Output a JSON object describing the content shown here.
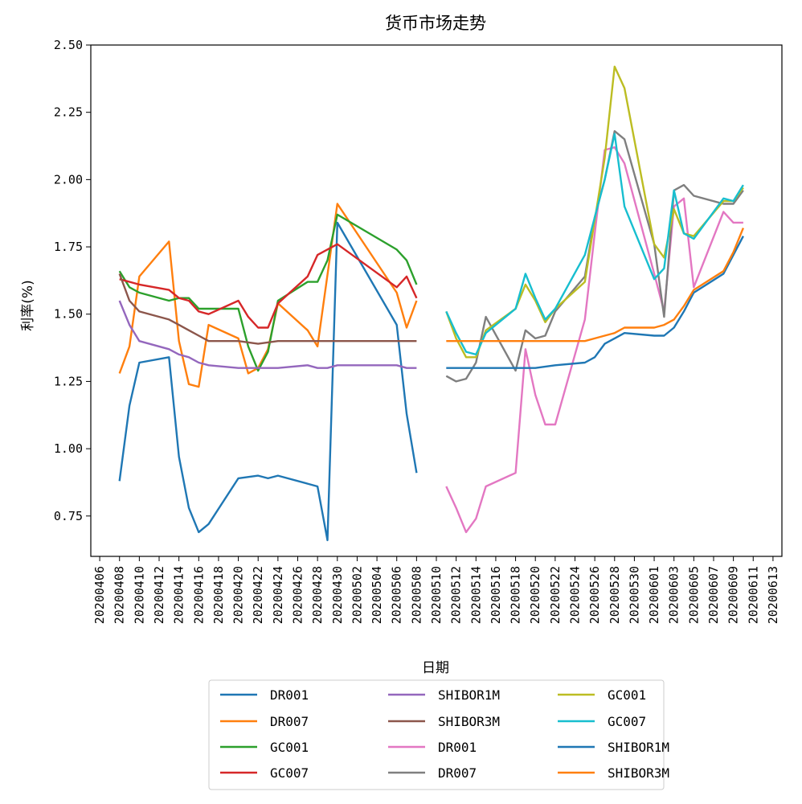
{
  "chart_data": {
    "type": "line",
    "title": "货币市场走势",
    "xlabel": "日期",
    "ylabel": "利率(%)",
    "ylim": [
      0.6,
      2.5
    ],
    "yticks": [
      "0.75",
      "1.00",
      "1.25",
      "1.50",
      "1.75",
      "2.00",
      "2.25",
      "2.50"
    ],
    "xticks": [
      "20200406",
      "20200408",
      "20200410",
      "20200412",
      "20200414",
      "20200416",
      "20200418",
      "20200420",
      "20200422",
      "20200424",
      "20200426",
      "20200428",
      "20200430",
      "20200502",
      "20200504",
      "20200506",
      "20200508",
      "20200510",
      "20200512",
      "20200514",
      "20200516",
      "20200518",
      "20200520",
      "20200522",
      "20200524",
      "20200526",
      "20200528",
      "20200530",
      "20200601",
      "20200603",
      "20200605",
      "20200607",
      "20200609",
      "20200611",
      "20200613"
    ],
    "x_start": "20200406",
    "x_end": "20200613",
    "legend_position": "below",
    "series": [
      {
        "name": "DR001",
        "color": "#1f77b4",
        "points": [
          [
            "20200408",
            0.88
          ],
          [
            "20200409",
            1.16
          ],
          [
            "20200410",
            1.32
          ],
          [
            "20200413",
            1.34
          ],
          [
            "20200414",
            0.97
          ],
          [
            "20200415",
            0.78
          ],
          [
            "20200416",
            0.69
          ],
          [
            "20200417",
            0.72
          ],
          [
            "20200420",
            0.89
          ],
          [
            "20200422",
            0.9
          ],
          [
            "20200423",
            0.89
          ],
          [
            "20200424",
            0.9
          ],
          [
            "20200427",
            0.87
          ],
          [
            "20200428",
            0.86
          ],
          [
            "20200429",
            0.66
          ],
          [
            "20200430",
            1.84
          ],
          [
            "20200506",
            1.46
          ],
          [
            "20200507",
            1.13
          ],
          [
            "20200508",
            0.91
          ]
        ]
      },
      {
        "name": "DR007",
        "color": "#ff7f0e",
        "points": [
          [
            "20200408",
            1.28
          ],
          [
            "20200409",
            1.38
          ],
          [
            "20200410",
            1.64
          ],
          [
            "20200413",
            1.77
          ],
          [
            "20200414",
            1.4
          ],
          [
            "20200415",
            1.24
          ],
          [
            "20200416",
            1.23
          ],
          [
            "20200417",
            1.46
          ],
          [
            "20200420",
            1.41
          ],
          [
            "20200421",
            1.28
          ],
          [
            "20200422",
            1.3
          ],
          [
            "20200423",
            1.37
          ],
          [
            "20200424",
            1.54
          ],
          [
            "20200427",
            1.44
          ],
          [
            "20200428",
            1.38
          ],
          [
            "20200430",
            1.91
          ],
          [
            "20200506",
            1.58
          ],
          [
            "20200507",
            1.45
          ],
          [
            "20200508",
            1.55
          ]
        ]
      },
      {
        "name": "GC001",
        "color": "#2ca02c",
        "points": [
          [
            "20200408",
            1.66
          ],
          [
            "20200409",
            1.6
          ],
          [
            "20200410",
            1.58
          ],
          [
            "20200413",
            1.55
          ],
          [
            "20200414",
            1.56
          ],
          [
            "20200415",
            1.56
          ],
          [
            "20200416",
            1.52
          ],
          [
            "20200417",
            1.52
          ],
          [
            "20200420",
            1.52
          ],
          [
            "20200421",
            1.38
          ],
          [
            "20200422",
            1.29
          ],
          [
            "20200423",
            1.36
          ],
          [
            "20200424",
            1.55
          ],
          [
            "20200427",
            1.62
          ],
          [
            "20200428",
            1.62
          ],
          [
            "20200429",
            1.7
          ],
          [
            "20200430",
            1.87
          ],
          [
            "20200506",
            1.74
          ],
          [
            "20200507",
            1.7
          ],
          [
            "20200508",
            1.61
          ]
        ]
      },
      {
        "name": "GC007",
        "color": "#d62728",
        "points": [
          [
            "20200408",
            1.63
          ],
          [
            "20200410",
            1.61
          ],
          [
            "20200413",
            1.59
          ],
          [
            "20200414",
            1.56
          ],
          [
            "20200415",
            1.55
          ],
          [
            "20200416",
            1.51
          ],
          [
            "20200417",
            1.5
          ],
          [
            "20200420",
            1.55
          ],
          [
            "20200421",
            1.49
          ],
          [
            "20200422",
            1.45
          ],
          [
            "20200423",
            1.45
          ],
          [
            "20200424",
            1.54
          ],
          [
            "20200427",
            1.64
          ],
          [
            "20200428",
            1.72
          ],
          [
            "20200430",
            1.76
          ],
          [
            "20200506",
            1.6
          ],
          [
            "20200507",
            1.64
          ],
          [
            "20200508",
            1.56
          ]
        ]
      },
      {
        "name": "SHIBOR1M",
        "color": "#9467bd",
        "points": [
          [
            "20200408",
            1.55
          ],
          [
            "20200409",
            1.46
          ],
          [
            "20200410",
            1.4
          ],
          [
            "20200413",
            1.37
          ],
          [
            "20200414",
            1.35
          ],
          [
            "20200415",
            1.34
          ],
          [
            "20200416",
            1.32
          ],
          [
            "20200417",
            1.31
          ],
          [
            "20200420",
            1.3
          ],
          [
            "20200422",
            1.3
          ],
          [
            "20200424",
            1.3
          ],
          [
            "20200427",
            1.31
          ],
          [
            "20200428",
            1.3
          ],
          [
            "20200429",
            1.3
          ],
          [
            "20200430",
            1.31
          ],
          [
            "20200506",
            1.31
          ],
          [
            "20200507",
            1.3
          ],
          [
            "20200508",
            1.3
          ]
        ]
      },
      {
        "name": "SHIBOR3M",
        "color": "#8c564b",
        "points": [
          [
            "20200408",
            1.65
          ],
          [
            "20200409",
            1.55
          ],
          [
            "20200410",
            1.51
          ],
          [
            "20200413",
            1.48
          ],
          [
            "20200414",
            1.46
          ],
          [
            "20200415",
            1.44
          ],
          [
            "20200416",
            1.42
          ],
          [
            "20200417",
            1.4
          ],
          [
            "20200420",
            1.4
          ],
          [
            "20200422",
            1.39
          ],
          [
            "20200424",
            1.4
          ],
          [
            "20200430",
            1.4
          ],
          [
            "20200508",
            1.4
          ]
        ]
      },
      {
        "name": "DR001",
        "color": "#e377c2",
        "points": [
          [
            "20200511",
            0.86
          ],
          [
            "20200512",
            0.78
          ],
          [
            "20200513",
            0.69
          ],
          [
            "20200514",
            0.74
          ],
          [
            "20200515",
            0.86
          ],
          [
            "20200518",
            0.91
          ],
          [
            "20200519",
            1.37
          ],
          [
            "20200520",
            1.2
          ],
          [
            "20200521",
            1.09
          ],
          [
            "20200522",
            1.09
          ],
          [
            "20200525",
            1.48
          ],
          [
            "20200526",
            1.8
          ],
          [
            "20200527",
            2.11
          ],
          [
            "20200528",
            2.12
          ],
          [
            "20200529",
            2.06
          ],
          [
            "20200601",
            1.65
          ],
          [
            "20200602",
            1.51
          ],
          [
            "20200603",
            1.9
          ],
          [
            "20200604",
            1.93
          ],
          [
            "20200605",
            1.6
          ],
          [
            "20200608",
            1.88
          ],
          [
            "20200609",
            1.84
          ],
          [
            "20200610",
            1.84
          ]
        ]
      },
      {
        "name": "DR007",
        "color": "#7f7f7f",
        "points": [
          [
            "20200511",
            1.27
          ],
          [
            "20200512",
            1.25
          ],
          [
            "20200513",
            1.26
          ],
          [
            "20200514",
            1.32
          ],
          [
            "20200515",
            1.49
          ],
          [
            "20200518",
            1.29
          ],
          [
            "20200519",
            1.44
          ],
          [
            "20200520",
            1.41
          ],
          [
            "20200521",
            1.42
          ],
          [
            "20200522",
            1.51
          ],
          [
            "20200525",
            1.64
          ],
          [
            "20200526",
            1.86
          ],
          [
            "20200527",
            2.0
          ],
          [
            "20200528",
            2.18
          ],
          [
            "20200529",
            2.15
          ],
          [
            "20200601",
            1.76
          ],
          [
            "20200602",
            1.49
          ],
          [
            "20200603",
            1.96
          ],
          [
            "20200604",
            1.98
          ],
          [
            "20200605",
            1.94
          ],
          [
            "20200608",
            1.91
          ],
          [
            "20200609",
            1.91
          ],
          [
            "20200610",
            1.96
          ]
        ]
      },
      {
        "name": "GC001",
        "color": "#bcbd22",
        "points": [
          [
            "20200511",
            1.51
          ],
          [
            "20200512",
            1.41
          ],
          [
            "20200513",
            1.34
          ],
          [
            "20200514",
            1.34
          ],
          [
            "20200515",
            1.44
          ],
          [
            "20200518",
            1.52
          ],
          [
            "20200519",
            1.61
          ],
          [
            "20200520",
            1.55
          ],
          [
            "20200521",
            1.47
          ],
          [
            "20200522",
            1.52
          ],
          [
            "20200525",
            1.62
          ],
          [
            "20200526",
            1.85
          ],
          [
            "20200527",
            2.08
          ],
          [
            "20200528",
            2.42
          ],
          [
            "20200529",
            2.34
          ],
          [
            "20200601",
            1.76
          ],
          [
            "20200602",
            1.71
          ],
          [
            "20200603",
            1.89
          ],
          [
            "20200604",
            1.8
          ],
          [
            "20200605",
            1.79
          ],
          [
            "20200608",
            1.92
          ],
          [
            "20200609",
            1.92
          ],
          [
            "20200610",
            1.97
          ]
        ]
      },
      {
        "name": "GC007",
        "color": "#17becf",
        "points": [
          [
            "20200511",
            1.51
          ],
          [
            "20200512",
            1.43
          ],
          [
            "20200513",
            1.36
          ],
          [
            "20200514",
            1.35
          ],
          [
            "20200515",
            1.43
          ],
          [
            "20200518",
            1.52
          ],
          [
            "20200519",
            1.65
          ],
          [
            "20200520",
            1.56
          ],
          [
            "20200521",
            1.48
          ],
          [
            "20200522",
            1.52
          ],
          [
            "20200525",
            1.72
          ],
          [
            "20200526",
            1.86
          ],
          [
            "20200527",
            2.0
          ],
          [
            "20200528",
            2.17
          ],
          [
            "20200529",
            1.9
          ],
          [
            "20200601",
            1.63
          ],
          [
            "20200602",
            1.67
          ],
          [
            "20200603",
            1.96
          ],
          [
            "20200604",
            1.8
          ],
          [
            "20200605",
            1.78
          ],
          [
            "20200608",
            1.93
          ],
          [
            "20200609",
            1.92
          ],
          [
            "20200610",
            1.98
          ]
        ]
      },
      {
        "name": "SHIBOR1M",
        "color": "#1f77b4",
        "points": [
          [
            "20200511",
            1.3
          ],
          [
            "20200513",
            1.3
          ],
          [
            "20200515",
            1.3
          ],
          [
            "20200518",
            1.3
          ],
          [
            "20200520",
            1.3
          ],
          [
            "20200522",
            1.31
          ],
          [
            "20200525",
            1.32
          ],
          [
            "20200526",
            1.34
          ],
          [
            "20200527",
            1.39
          ],
          [
            "20200528",
            1.41
          ],
          [
            "20200529",
            1.43
          ],
          [
            "20200601",
            1.42
          ],
          [
            "20200602",
            1.42
          ],
          [
            "20200603",
            1.45
          ],
          [
            "20200604",
            1.51
          ],
          [
            "20200605",
            1.58
          ],
          [
            "20200608",
            1.65
          ],
          [
            "20200609",
            1.72
          ],
          [
            "20200610",
            1.79
          ]
        ]
      },
      {
        "name": "SHIBOR3M",
        "color": "#ff7f0e",
        "points": [
          [
            "20200511",
            1.4
          ],
          [
            "20200513",
            1.4
          ],
          [
            "20200515",
            1.4
          ],
          [
            "20200518",
            1.4
          ],
          [
            "20200520",
            1.4
          ],
          [
            "20200522",
            1.4
          ],
          [
            "20200525",
            1.4
          ],
          [
            "20200526",
            1.41
          ],
          [
            "20200527",
            1.42
          ],
          [
            "20200528",
            1.43
          ],
          [
            "20200529",
            1.45
          ],
          [
            "20200601",
            1.45
          ],
          [
            "20200602",
            1.46
          ],
          [
            "20200603",
            1.48
          ],
          [
            "20200604",
            1.53
          ],
          [
            "20200605",
            1.59
          ],
          [
            "20200608",
            1.66
          ],
          [
            "20200609",
            1.73
          ],
          [
            "20200610",
            1.82
          ]
        ]
      }
    ]
  }
}
